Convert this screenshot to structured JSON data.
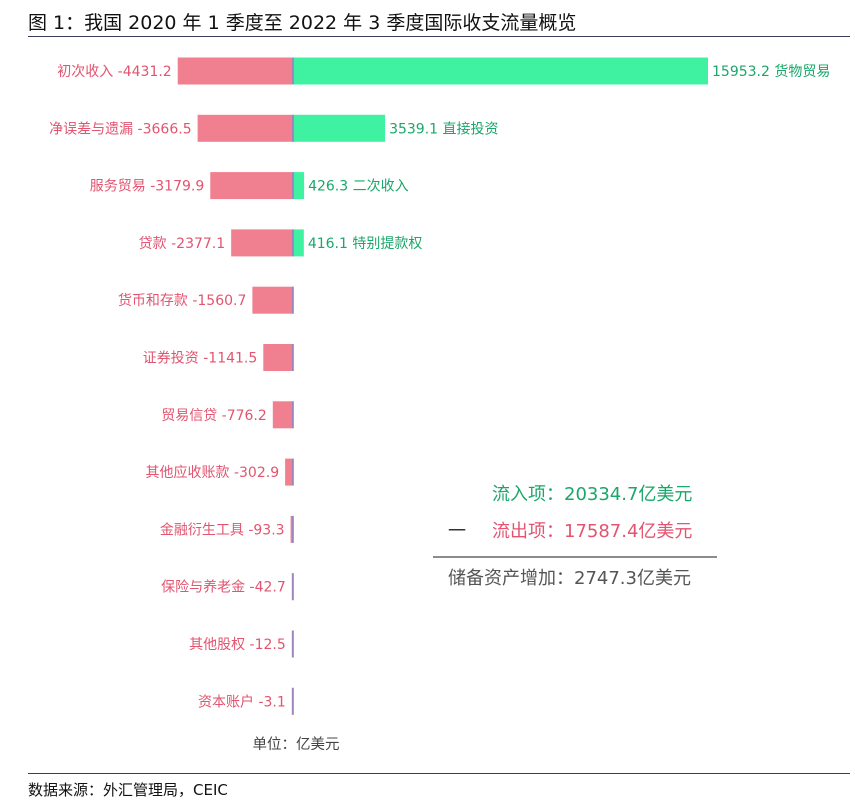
{
  "title": "图 1：我国 2020 年 1 季度至 2022 年 3 季度国际收支流量概览",
  "source": "数据来源：外汇管理局，CEIC",
  "colors": {
    "negative": "#f07f8f",
    "positive": "#3ef2a2",
    "negative_text": "#e2546f",
    "positive_text": "#1aa76a",
    "axis": "#8a86c8"
  },
  "chart_data": {
    "type": "bar",
    "orientation": "horizontal-diverging",
    "unit_label": "单位：亿美元",
    "rows": [
      {
        "neg_label": "初次收入",
        "neg_value": -4431.2,
        "pos_label": "货物贸易",
        "pos_value": 15953.2
      },
      {
        "neg_label": "净误差与遗漏",
        "neg_value": -3666.5,
        "pos_label": "直接投资",
        "pos_value": 3539.1
      },
      {
        "neg_label": "服务贸易",
        "neg_value": -3179.9,
        "pos_label": "二次收入",
        "pos_value": 426.3
      },
      {
        "neg_label": "贷款",
        "neg_value": -2377.1,
        "pos_label": "特别提款权",
        "pos_value": 416.1
      },
      {
        "neg_label": "货币和存款",
        "neg_value": -1560.7
      },
      {
        "neg_label": "证券投资",
        "neg_value": -1141.5
      },
      {
        "neg_label": "贸易信贷",
        "neg_value": -776.2
      },
      {
        "neg_label": "其他应收账款",
        "neg_value": -302.9
      },
      {
        "neg_label": "金融衍生工具",
        "neg_value": -93.3
      },
      {
        "neg_label": "保险与养老金",
        "neg_value": -42.7
      },
      {
        "neg_label": "其他股权",
        "neg_value": -12.5
      },
      {
        "neg_label": "资本账户",
        "neg_value": -3.1
      }
    ],
    "summary": {
      "inflow": "流入项：20334.7亿美元",
      "outflow_sign": "一",
      "outflow": "流出项：17587.4亿美元",
      "net": "储备资产增加：2747.3亿美元"
    }
  }
}
